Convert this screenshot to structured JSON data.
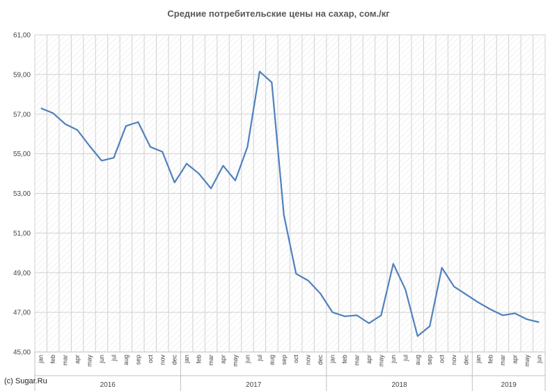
{
  "chart_data": {
    "type": "line",
    "title": "Средние потребительские цены на сахар, сом./кг",
    "xlabel": "",
    "ylabel": "",
    "ylim": [
      45,
      61
    ],
    "yticks": [
      "45,00",
      "47,00",
      "49,00",
      "51,00",
      "53,00",
      "55,00",
      "57,00",
      "59,00",
      "61,00"
    ],
    "ytick_values": [
      45,
      47,
      49,
      51,
      53,
      55,
      57,
      59,
      61
    ],
    "grid": true,
    "line_color": "#4F81BD",
    "categories": [
      "jan",
      "feb",
      "mar",
      "apr",
      "may",
      "jun",
      "jul",
      "aug",
      "sep",
      "oct",
      "nov",
      "dec",
      "jan",
      "feb",
      "mar",
      "apr",
      "may",
      "jun",
      "jul",
      "aug",
      "sep",
      "oct",
      "nov",
      "dec",
      "jan",
      "feb",
      "mar",
      "apr",
      "may",
      "jun",
      "jul",
      "aug",
      "sep",
      "oct",
      "nov",
      "dec",
      "jan",
      "feb",
      "mar",
      "apr",
      "may",
      "jun"
    ],
    "years": [
      {
        "label": "2016",
        "months": 12
      },
      {
        "label": "2017",
        "months": 12
      },
      {
        "label": "2018",
        "months": 12
      },
      {
        "label": "2019",
        "months": 6
      }
    ],
    "values": [
      57.3,
      57.05,
      56.5,
      56.2,
      55.4,
      54.65,
      54.8,
      56.4,
      56.6,
      55.35,
      55.1,
      53.55,
      54.5,
      54.0,
      53.25,
      54.4,
      53.65,
      55.35,
      59.15,
      58.6,
      51.9,
      48.95,
      48.6,
      47.95,
      47.0,
      46.8,
      46.85,
      46.45,
      46.85,
      49.45,
      48.15,
      45.8,
      46.3,
      49.25,
      48.3,
      47.9,
      47.5,
      47.15,
      46.85,
      46.95,
      46.65,
      46.5
    ]
  },
  "footer": {
    "copyright": "(c) Sugar.Ru"
  }
}
